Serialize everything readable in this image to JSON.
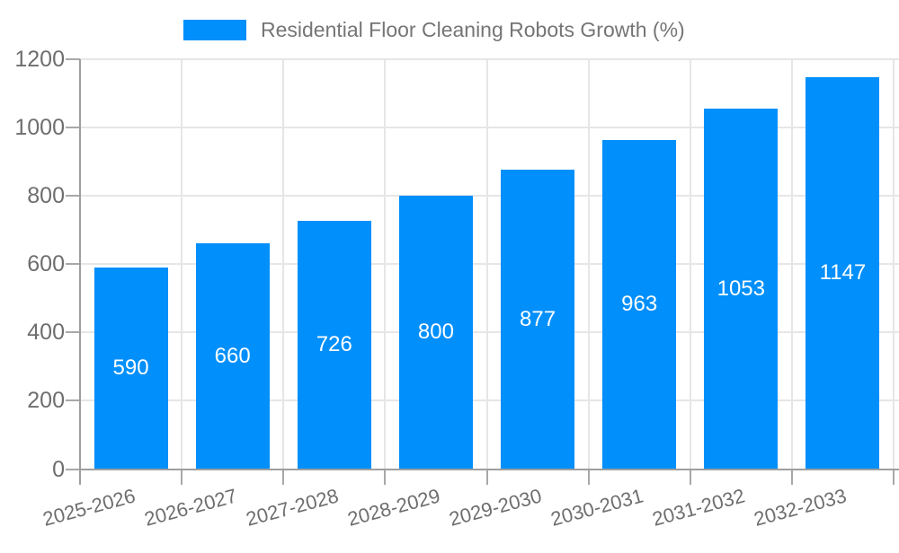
{
  "page": {
    "background": "#ffffff"
  },
  "legend": {
    "position": "top",
    "swatch_color": "#008FFB"
  },
  "chart_data": {
    "type": "bar",
    "title": "Residential Floor Cleaning Robots Growth (%)",
    "series_name": "Residential Floor Cleaning Robots Growth (%)",
    "categories": [
      "2025-2026",
      "2026-2027",
      "2027-2028",
      "2028-2029",
      "2029-2030",
      "2030-2031",
      "2031-2032",
      "2032-2033"
    ],
    "values": [
      590,
      660,
      726,
      800,
      877,
      963,
      1053,
      1147
    ],
    "value_labels_shown": true,
    "xlabel": "",
    "ylabel": "",
    "ylim": [
      0,
      1200
    ],
    "yticks": [
      0,
      200,
      400,
      600,
      800,
      1000,
      1200
    ],
    "grid": "horizontal-and-category-boundaries",
    "legend_position": "top",
    "x_label_rotation_deg": -15,
    "colors": {
      "bar": "#008FFB",
      "value_label": "#ffffff",
      "axis_text": "#6e6e6e",
      "legend_text": "#757575",
      "gridline": "#e6e6e6",
      "axis_line": "#9e9e9e",
      "tick": "#a8a8a8",
      "background": "#ffffff"
    }
  }
}
